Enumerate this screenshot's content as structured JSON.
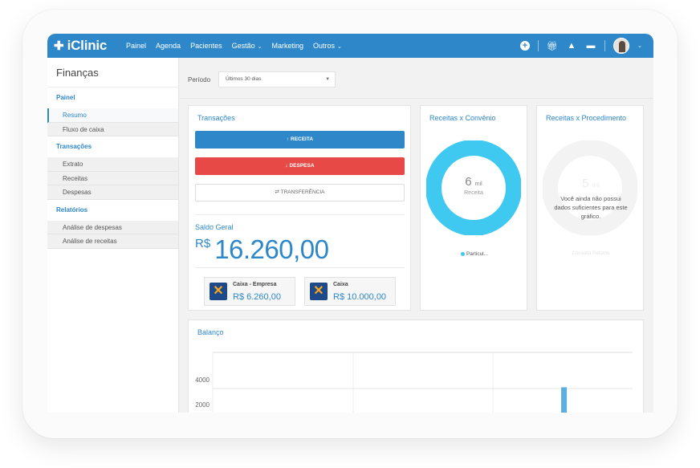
{
  "topbar": {
    "brand": "iClinic",
    "nav": [
      {
        "label": "Painel",
        "chevron": false
      },
      {
        "label": "Agenda",
        "chevron": false
      },
      {
        "label": "Pacientes",
        "chevron": false
      },
      {
        "label": "Gestão",
        "chevron": true
      },
      {
        "label": "Marketing",
        "chevron": false
      },
      {
        "label": "Outros",
        "chevron": true
      }
    ]
  },
  "sidebar": {
    "title": "Finanças",
    "sections": {
      "painel": "Painel",
      "transacoes": "Transações",
      "relatorios": "Relatórios"
    },
    "items": {
      "resumo": "Resumo",
      "fluxo": "Fluxo de caixa",
      "extrato": "Extrato",
      "receitas": "Receitas",
      "despesas": "Despesas",
      "analise_despesas": "Análise de despesas",
      "analise_receitas": "Análise de receitas"
    }
  },
  "filter": {
    "label": "Período",
    "value": "Últimos 30 dias"
  },
  "transacoes": {
    "title": "Transações",
    "btn_receita": "RECEITA",
    "btn_despesa": "DESPESA",
    "btn_transferencia": "TRANSFERÊNCIA",
    "saldo_label": "Saldo Geral",
    "saldo_currency": "R$",
    "saldo_value": "16.260,00",
    "accounts": [
      {
        "name": "Caixa - Empresa",
        "value": "R$ 6.260,00"
      },
      {
        "name": "Caixa",
        "value": "R$ 10.000,00"
      }
    ]
  },
  "convenio": {
    "title": "Receitas x Convênio",
    "center_value": "6",
    "center_unit": "mil",
    "center_label": "Receita",
    "legend": "Particul...",
    "color": "#3fc8f0"
  },
  "procedimento": {
    "title": "Receitas x Procedimento",
    "faint_value": "5",
    "faint_unit": "mil",
    "message": "Você ainda não possui dados suficientes para este gráfico.",
    "legend_faint": "Consulta   Retorno"
  },
  "chart_data": {
    "type": "bar",
    "title": "Balanço",
    "y_ticks": [
      2000,
      4000
    ],
    "ylim": [
      0,
      6000
    ],
    "bars": [
      {
        "index": 0.83,
        "value": 4100
      }
    ],
    "color": "#5aaee0"
  }
}
